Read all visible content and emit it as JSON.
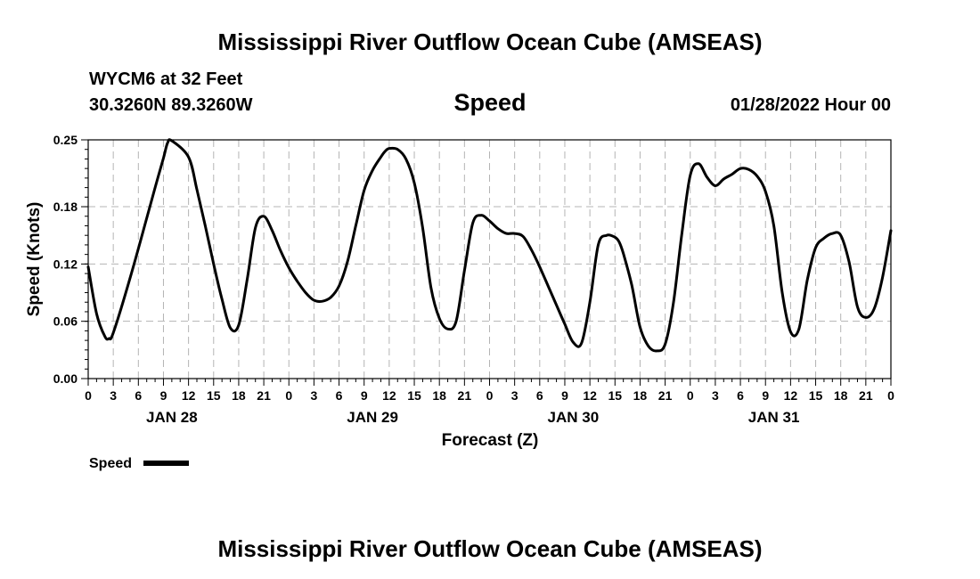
{
  "page": {
    "title_top": "Mississippi River Outflow Ocean Cube (AMSEAS)",
    "title_bottom": "Mississippi River Outflow Ocean Cube (AMSEAS)",
    "station": "WYCM6 at 32 Feet",
    "location": "30.3260N  89.3260W",
    "datetime": "01/28/2022 Hour 00"
  },
  "chart_data": {
    "type": "line",
    "title": "Speed",
    "xlabel": "Forecast (Z)",
    "ylabel": "Speed (Knots)",
    "ylim": [
      0,
      0.25
    ],
    "yticks": [
      "0.00",
      "0.06",
      "0.12",
      "0.18",
      "0.25"
    ],
    "xlim": [
      0,
      96
    ],
    "xtick_labels": [
      "0",
      "3",
      "6",
      "9",
      "12",
      "15",
      "18",
      "21",
      "0",
      "3",
      "6",
      "9",
      "12",
      "15",
      "18",
      "21",
      "0",
      "3",
      "6",
      "9",
      "12",
      "15",
      "18",
      "21",
      "0",
      "3",
      "6",
      "9",
      "12",
      "15",
      "18",
      "21",
      "0"
    ],
    "day_labels": [
      "JAN 28",
      "JAN 29",
      "JAN 30",
      "JAN 31"
    ],
    "grid": true,
    "legend_position": "bottom-left",
    "series": [
      {
        "name": "Speed",
        "color": "#000000",
        "x": [
          0,
          1,
          2,
          2.5,
          3,
          5,
          7,
          8,
          9,
          9.5,
          10,
          12,
          13,
          14,
          15,
          16,
          17,
          18,
          19,
          20,
          21,
          22,
          23,
          24,
          25,
          26,
          27,
          28,
          29,
          30,
          31,
          32,
          33,
          34,
          35,
          35.5,
          36,
          37,
          38,
          39,
          40,
          41,
          42,
          43,
          44,
          45,
          46,
          47,
          48,
          49,
          50,
          51,
          52,
          53,
          54,
          55,
          56,
          57,
          58,
          59,
          60,
          61,
          62,
          63,
          63.5,
          64,
          65,
          66,
          67,
          68,
          69,
          70,
          71,
          72,
          73,
          74,
          75,
          76,
          77,
          78,
          79,
          80,
          81,
          82,
          83,
          84,
          85,
          86,
          87,
          88,
          89,
          90,
          91,
          92,
          93,
          94,
          95,
          96
        ],
        "y": [
          0.117,
          0.068,
          0.044,
          0.042,
          0.048,
          0.105,
          0.168,
          0.2,
          0.231,
          0.247,
          0.249,
          0.232,
          0.198,
          0.16,
          0.12,
          0.083,
          0.053,
          0.056,
          0.103,
          0.158,
          0.17,
          0.155,
          0.134,
          0.116,
          0.102,
          0.09,
          0.082,
          0.081,
          0.085,
          0.097,
          0.122,
          0.16,
          0.197,
          0.218,
          0.232,
          0.238,
          0.241,
          0.24,
          0.23,
          0.205,
          0.158,
          0.095,
          0.063,
          0.052,
          0.06,
          0.113,
          0.163,
          0.171,
          0.165,
          0.157,
          0.152,
          0.152,
          0.149,
          0.135,
          0.117,
          0.097,
          0.077,
          0.057,
          0.038,
          0.037,
          0.08,
          0.14,
          0.15,
          0.148,
          0.143,
          0.131,
          0.098,
          0.054,
          0.034,
          0.029,
          0.036,
          0.08,
          0.152,
          0.213,
          0.225,
          0.211,
          0.202,
          0.209,
          0.214,
          0.22,
          0.219,
          0.212,
          0.196,
          0.16,
          0.09,
          0.049,
          0.052,
          0.103,
          0.137,
          0.147,
          0.152,
          0.15,
          0.122,
          0.075,
          0.064,
          0.073,
          0.106,
          0.155
        ]
      }
    ]
  }
}
